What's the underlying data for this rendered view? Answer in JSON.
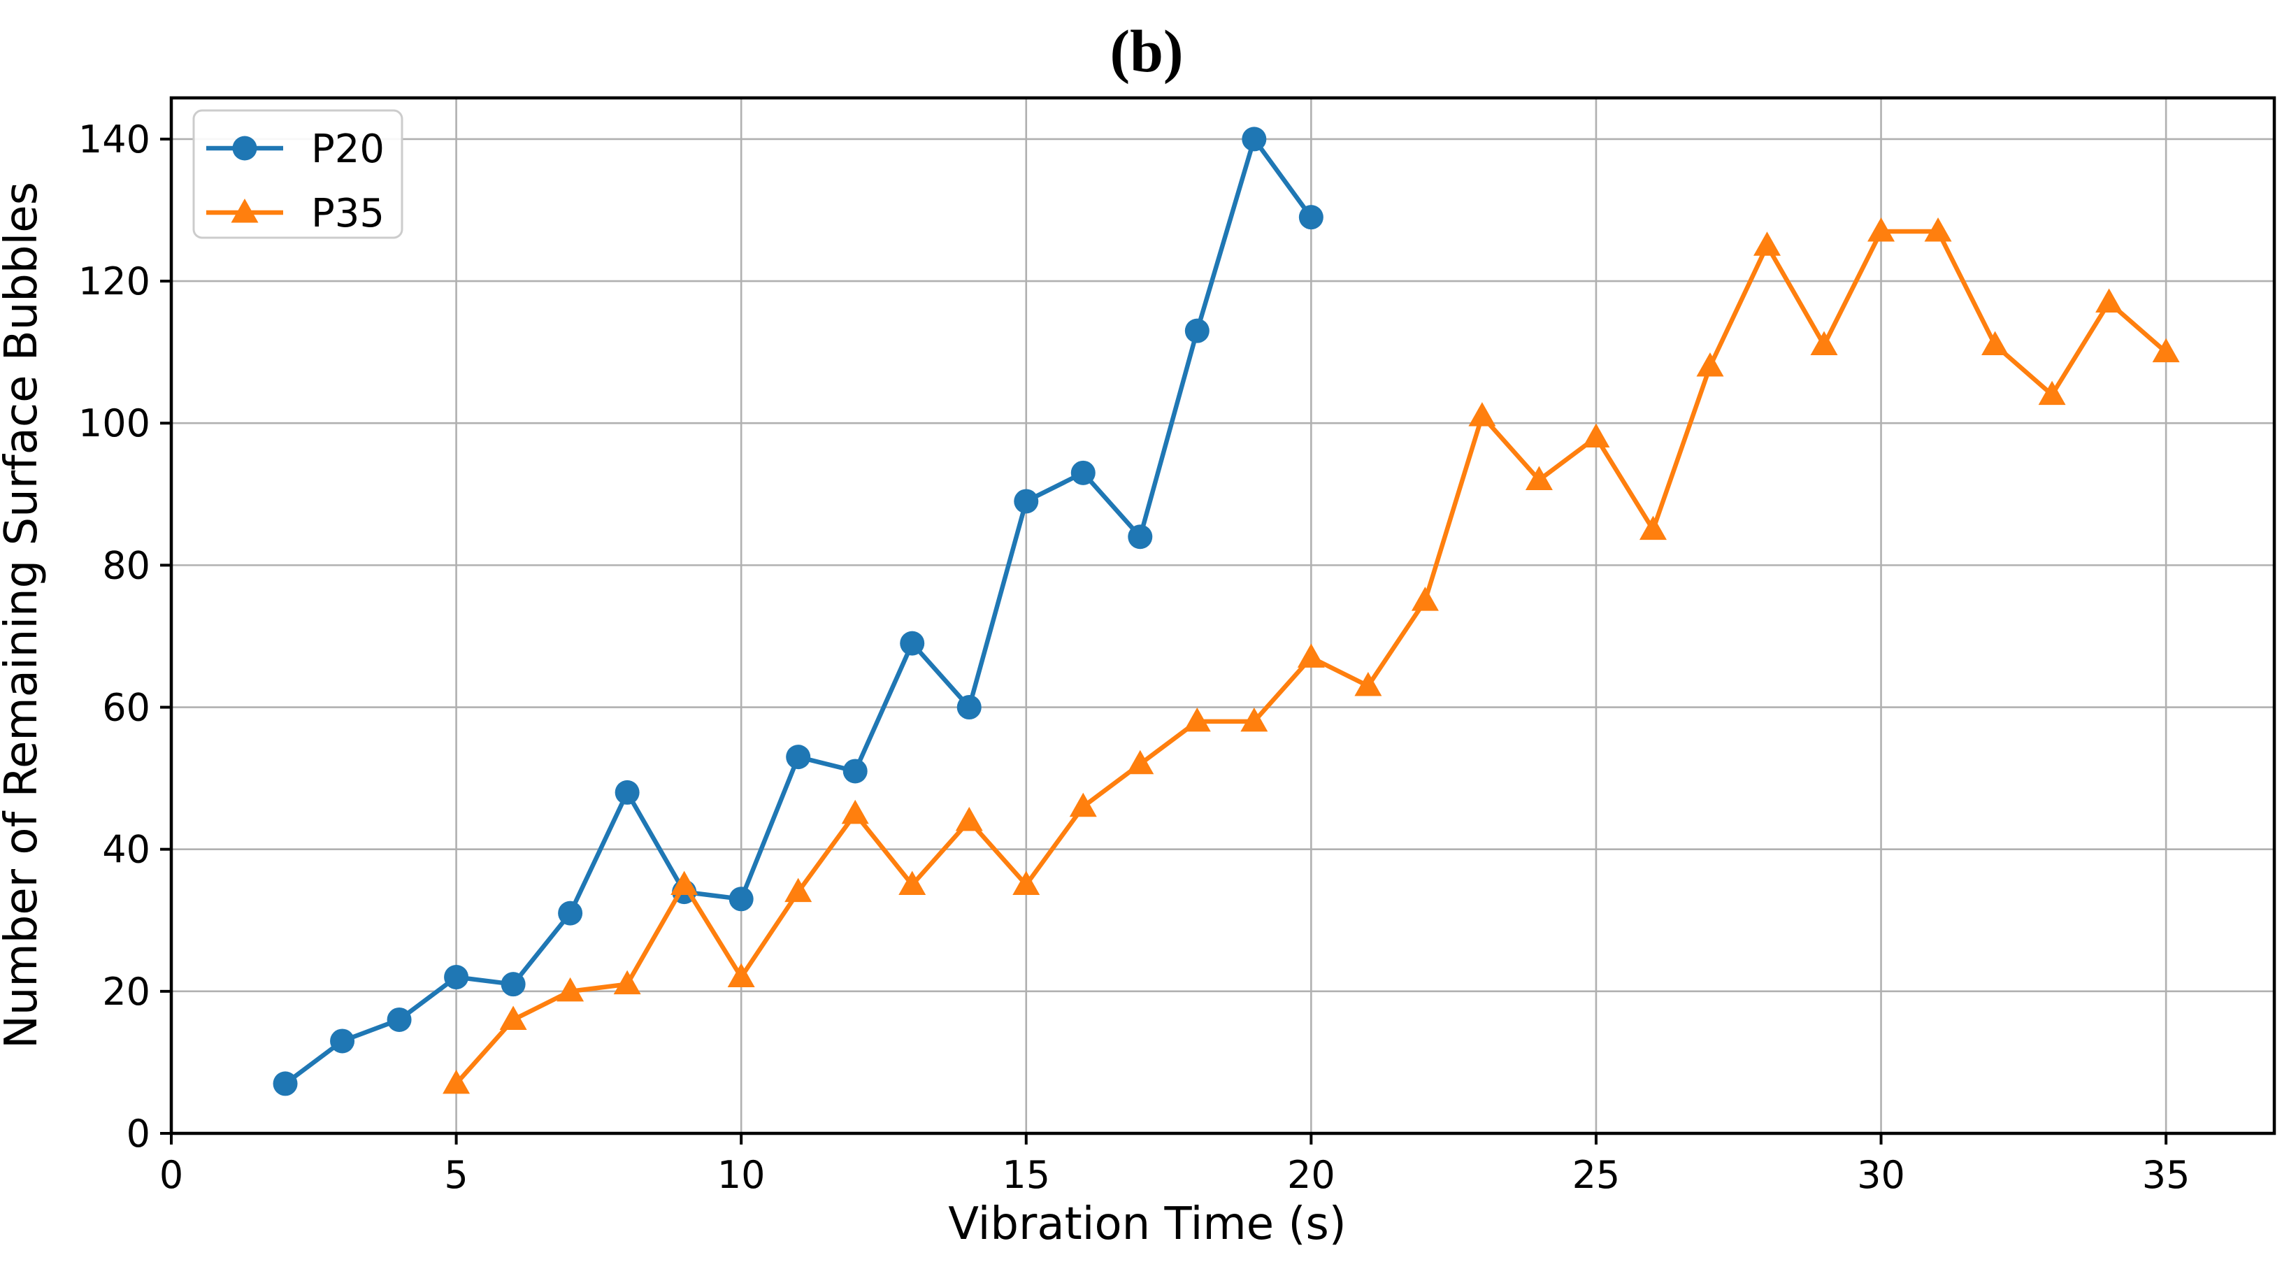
{
  "title": "(b)",
  "chart_data": {
    "type": "line",
    "title": "(b)",
    "xlabel": "Vibration Time (s)",
    "ylabel": "Number of Remaining Surface Bubbles",
    "xlim": [
      0,
      36.9
    ],
    "ylim": [
      0,
      145.8
    ],
    "xticks": [
      0,
      5,
      10,
      15,
      20,
      25,
      30,
      35
    ],
    "yticks": [
      0,
      20,
      40,
      60,
      80,
      100,
      120,
      140
    ],
    "grid": true,
    "grid_color": "#b0b0b0",
    "legend_position": "upper left",
    "series": [
      {
        "name": "P20",
        "color": "#1f77b4",
        "marker": "circle",
        "x": [
          2,
          3,
          4,
          5,
          6,
          7,
          8,
          9,
          10,
          11,
          12,
          13,
          14,
          15,
          16,
          17,
          18,
          19,
          20
        ],
        "y": [
          7,
          13,
          16,
          22,
          21,
          31,
          48,
          34,
          33,
          53,
          51,
          69,
          60,
          89,
          93,
          84,
          113,
          140,
          129
        ]
      },
      {
        "name": "P35",
        "color": "#ff7f0e",
        "marker": "triangle",
        "x": [
          5,
          6,
          7,
          8,
          9,
          10,
          11,
          12,
          13,
          14,
          15,
          16,
          17,
          18,
          19,
          20,
          21,
          22,
          23,
          24,
          25,
          26,
          27,
          28,
          29,
          30,
          31,
          32,
          33,
          34,
          35
        ],
        "y": [
          7,
          16,
          20,
          21,
          35,
          22,
          34,
          45,
          35,
          44,
          35,
          46,
          52,
          58,
          58,
          67,
          63,
          75,
          101,
          92,
          98,
          85,
          108,
          125,
          111,
          127,
          127,
          111,
          104,
          117,
          110
        ]
      }
    ]
  },
  "colors": {
    "series_blue": "#1f77b4",
    "series_orange": "#ff7f0e",
    "grid": "#b0b0b0",
    "spine": "#000000",
    "legend_border": "#cccccc",
    "background": "#ffffff"
  }
}
